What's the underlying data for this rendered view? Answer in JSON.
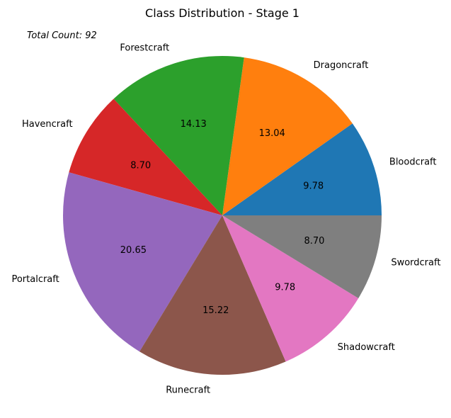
{
  "chart_data": {
    "type": "pie",
    "title": "Class Distribution - Stage 1",
    "annotation": "Total Count: 92",
    "categories": [
      "Bloodcraft",
      "Dragoncraft",
      "Forestcraft",
      "Havencraft",
      "Portalcraft",
      "Runecraft",
      "Shadowcraft",
      "Swordcraft"
    ],
    "values": [
      9.78,
      13.04,
      14.13,
      8.7,
      20.65,
      15.22,
      9.78,
      8.7
    ],
    "value_labels": [
      "9.78",
      "13.04",
      "14.13",
      "8.70",
      "20.65",
      "15.22",
      "9.78",
      "8.70"
    ],
    "colors": [
      "#1f77b4",
      "#ff7f0e",
      "#2ca02c",
      "#d62728",
      "#9467bd",
      "#8c564b",
      "#e377c2",
      "#7f7f7f"
    ],
    "start_angle": 0,
    "direction": "counterclockwise"
  }
}
